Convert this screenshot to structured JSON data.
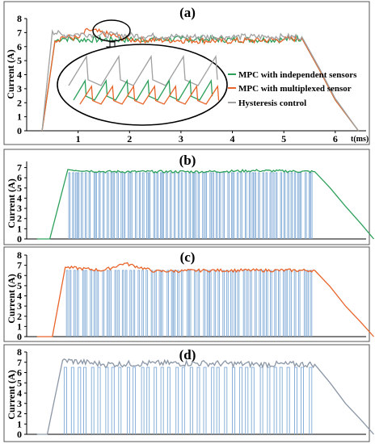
{
  "chart_data": [
    {
      "type": "line",
      "title": "(a)",
      "xlabel": "t(ms)",
      "ylabel": "Current (A)",
      "xlim": [
        0,
        6.6
      ],
      "ylim": [
        0,
        8
      ],
      "xticks": [
        1,
        2,
        3,
        4,
        5,
        6
      ],
      "yticks": [
        0,
        1,
        2,
        3,
        4,
        5,
        6,
        7,
        8
      ],
      "grid": false,
      "legend_position": "center-right",
      "inset": "zoomed view of the current ripple near t = 1.5–2.0 ms",
      "series": [
        {
          "name": "MPC with independent sensors",
          "color": "#2ca05a",
          "points": [
            [
              0.3,
              0
            ],
            [
              0.55,
              6.4
            ],
            [
              0.7,
              6.6
            ],
            [
              1.0,
              6.5
            ],
            [
              2.0,
              6.5
            ],
            [
              3.0,
              6.55
            ],
            [
              4.0,
              6.5
            ],
            [
              5.0,
              6.5
            ],
            [
              5.35,
              6.6
            ],
            [
              5.7,
              4.3
            ],
            [
              6.0,
              2.2
            ],
            [
              6.45,
              0
            ]
          ]
        },
        {
          "name": "MPC with multiplexed sensor",
          "color": "#e8642a",
          "points": [
            [
              0.3,
              0
            ],
            [
              0.55,
              6.4
            ],
            [
              0.7,
              6.7
            ],
            [
              1.0,
              6.6
            ],
            [
              1.2,
              7.2
            ],
            [
              2.0,
              6.5
            ],
            [
              3.0,
              6.45
            ],
            [
              4.0,
              6.4
            ],
            [
              5.0,
              6.5
            ],
            [
              5.35,
              6.6
            ],
            [
              5.7,
              4.3
            ],
            [
              6.0,
              2.2
            ],
            [
              6.45,
              0
            ]
          ]
        },
        {
          "name": "Hysteresis control",
          "color": "#a0a0a0",
          "points": [
            [
              0.3,
              0
            ],
            [
              0.5,
              7.1
            ],
            [
              0.7,
              6.8
            ],
            [
              1.0,
              6.9
            ],
            [
              2.0,
              6.8
            ],
            [
              3.0,
              6.7
            ],
            [
              4.0,
              6.7
            ],
            [
              5.0,
              6.7
            ],
            [
              5.35,
              6.7
            ],
            [
              5.7,
              4.4
            ],
            [
              6.0,
              2.3
            ],
            [
              6.45,
              0
            ]
          ]
        }
      ]
    },
    {
      "type": "line",
      "title": "(b)",
      "xlabel": "",
      "ylabel": "Current (A)",
      "xlim": [
        0,
        6.6
      ],
      "ylim": [
        0,
        7.6
      ],
      "yticks": [
        0,
        1,
        2,
        3,
        4,
        5,
        6,
        7
      ],
      "grid": false,
      "series": [
        {
          "name": "",
          "color": "#2ca05a",
          "points": [
            [
              0.2,
              0
            ],
            [
              0.45,
              0
            ],
            [
              0.8,
              6.8
            ],
            [
              1.5,
              6.6
            ],
            [
              2.5,
              6.6
            ],
            [
              3.5,
              6.6
            ],
            [
              4.5,
              6.7
            ],
            [
              5.6,
              6.6
            ],
            [
              5.9,
              5.0
            ],
            [
              6.2,
              3.2
            ],
            [
              6.5,
              1.5
            ],
            [
              6.75,
              0
            ]
          ]
        },
        {
          "name": "",
          "color": "#7fa9d6",
          "switching_pulses": true
        }
      ]
    },
    {
      "type": "line",
      "title": "(c)",
      "xlabel": "",
      "ylabel": "Current (A)",
      "xlim": [
        0,
        6.6
      ],
      "ylim": [
        0,
        8
      ],
      "yticks": [
        0,
        1,
        2,
        3,
        4,
        5,
        6,
        7,
        8
      ],
      "grid": false,
      "series": [
        {
          "name": "",
          "color": "#e8642a",
          "points": [
            [
              0.2,
              0
            ],
            [
              0.5,
              0
            ],
            [
              0.75,
              6.8
            ],
            [
              1.5,
              6.5
            ],
            [
              1.9,
              7.2
            ],
            [
              2.5,
              6.4
            ],
            [
              3.5,
              6.5
            ],
            [
              4.5,
              6.5
            ],
            [
              5.6,
              6.5
            ],
            [
              5.9,
              4.9
            ],
            [
              6.2,
              3.0
            ],
            [
              6.5,
              1.4
            ],
            [
              6.75,
              0
            ]
          ]
        },
        {
          "name": "",
          "color": "#7fa9d6",
          "switching_pulses": true
        }
      ]
    },
    {
      "type": "line",
      "title": "(d)",
      "xlabel": "",
      "ylabel": "Current (A)",
      "xlim": [
        0,
        6.6
      ],
      "ylim": [
        0,
        8
      ],
      "yticks": [
        0,
        1,
        2,
        3,
        4,
        5,
        6,
        7,
        8
      ],
      "grid": false,
      "series": [
        {
          "name": "",
          "color": "#8a96a6",
          "points": [
            [
              0.2,
              0
            ],
            [
              0.4,
              0
            ],
            [
              0.7,
              7.2
            ],
            [
              1.5,
              6.8
            ],
            [
              2.5,
              6.9
            ],
            [
              3.5,
              6.9
            ],
            [
              4.5,
              6.8
            ],
            [
              5.6,
              6.8
            ],
            [
              5.9,
              5.0
            ],
            [
              6.2,
              3.0
            ],
            [
              6.5,
              1.4
            ],
            [
              6.75,
              0
            ]
          ]
        },
        {
          "name": "",
          "color": "#7fa9d6",
          "switching_pulses": true
        }
      ]
    }
  ]
}
